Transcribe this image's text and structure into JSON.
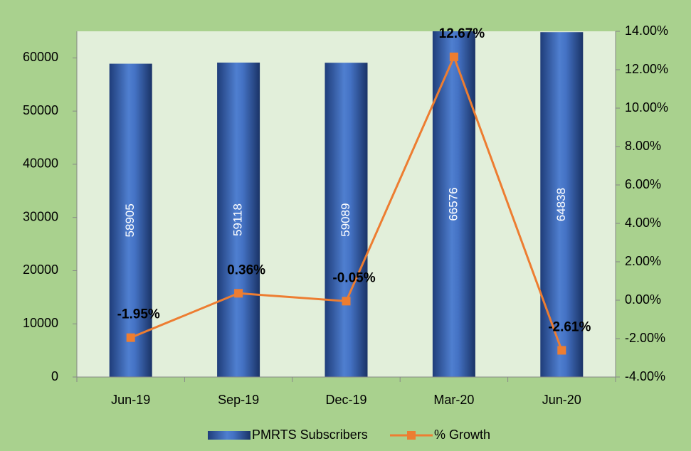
{
  "chart_data": {
    "type": "bar-line",
    "categories": [
      "Jun-19",
      "Sep-19",
      "Dec-19",
      "Mar-20",
      "Jun-20"
    ],
    "series": [
      {
        "name": "PMRTS Subscribers",
        "type": "bar",
        "color": "#4472c4",
        "values": [
          58905,
          59118,
          59089,
          66576,
          64838
        ]
      },
      {
        "name": "% Growth",
        "type": "line",
        "axis": "y2",
        "color": "#ed7d31",
        "values": [
          -1.95,
          0.36,
          -0.05,
          12.67,
          -2.61
        ],
        "value_labels": [
          "-1.95%",
          "0.36%",
          "-0.05%",
          "12.67%",
          "-2.61%"
        ]
      }
    ],
    "ylim": [
      0,
      65000
    ],
    "yticks": [
      0,
      10000,
      20000,
      30000,
      40000,
      50000,
      60000
    ],
    "y2lim": [
      -4,
      14
    ],
    "y2ticks": [
      {
        "value": -4,
        "label": "-4.00%"
      },
      {
        "value": -2,
        "label": "-2.00%"
      },
      {
        "value": 0,
        "label": "0.00%"
      },
      {
        "value": 2,
        "label": "2.00%"
      },
      {
        "value": 4,
        "label": "4.00%"
      },
      {
        "value": 6,
        "label": "6.00%"
      },
      {
        "value": 8,
        "label": "8.00%"
      },
      {
        "value": 10,
        "label": "10.00%"
      },
      {
        "value": 12,
        "label": "12.00%"
      },
      {
        "value": 14,
        "label": "14.00%"
      }
    ],
    "legend": "bottom"
  }
}
